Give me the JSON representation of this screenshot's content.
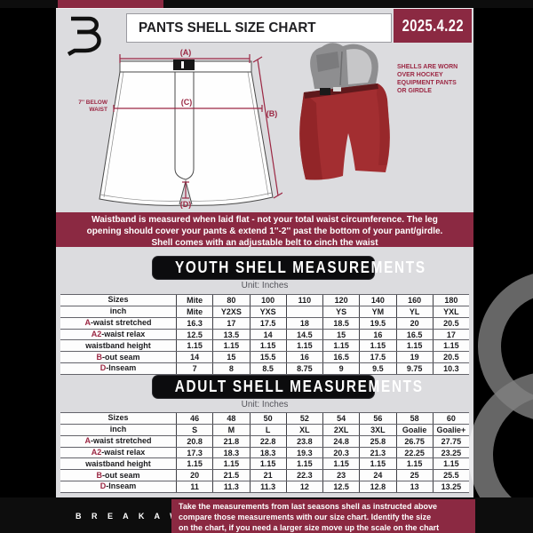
{
  "colors": {
    "maroon": "#8b2942",
    "accent_letter": "#9b2743",
    "page_bg": "#dcdcdf",
    "bar_black": "#0d0d0d"
  },
  "header": {
    "title": "PANTS SHELL SIZE CHART",
    "date": "2025.4.22"
  },
  "diagram": {
    "labels": {
      "a": "(A)",
      "b": "(B)",
      "c": "(C)",
      "d": "(D)"
    },
    "waist_note": [
      "7'' BELOW",
      "WAIST"
    ],
    "shell_note": [
      "SHELLS ARE WORN",
      "OVER HOCKEY",
      "EQUIPMENT PANTS",
      "OR GIRDLE"
    ]
  },
  "notice": {
    "lines": [
      "Waistband is measured when laid flat - not your total waist circumference. The leg",
      "opening should cover your pants & extend 1''-2'' past the bottom of your pant/girdle.",
      "Shell comes with an adjustable belt to cinch the waist"
    ]
  },
  "youth": {
    "heading": "YOUTH SHELL MEASUREMENTS",
    "unit": "Unit: Inches",
    "rows": [
      {
        "prefix": "",
        "label": "Sizes",
        "values": [
          "Mite",
          "80",
          "100",
          "110",
          "120",
          "140",
          "160",
          "180"
        ]
      },
      {
        "prefix": "",
        "label": "inch",
        "values": [
          "Mite",
          "Y2XS",
          "YXS",
          "",
          "YS",
          "YM",
          "YL",
          "YXL"
        ]
      },
      {
        "prefix": "A",
        "label": "-waist stretched",
        "values": [
          "16.3",
          "17",
          "17.5",
          "18",
          "18.5",
          "19.5",
          "20",
          "20.5"
        ]
      },
      {
        "prefix": "A2",
        "label": "-waist relax",
        "values": [
          "12.5",
          "13.5",
          "14",
          "14.5",
          "15",
          "16",
          "16.5",
          "17"
        ]
      },
      {
        "prefix": "",
        "label": "waistband height",
        "values": [
          "1.15",
          "1.15",
          "1.15",
          "1.15",
          "1.15",
          "1.15",
          "1.15",
          "1.15"
        ]
      },
      {
        "prefix": "B",
        "label": "-out seam",
        "values": [
          "14",
          "15",
          "15.5",
          "16",
          "16.5",
          "17.5",
          "19",
          "20.5"
        ]
      },
      {
        "prefix": "D",
        "label": "-Inseam",
        "values": [
          "7",
          "8",
          "8.5",
          "8.75",
          "9",
          "9.5",
          "9.75",
          "10.3"
        ]
      }
    ]
  },
  "adult": {
    "heading": "ADULT SHELL MEASUREMENTS",
    "unit": "Unit: Inches",
    "rows": [
      {
        "prefix": "",
        "label": "Sizes",
        "values": [
          "46",
          "48",
          "50",
          "52",
          "54",
          "56",
          "58",
          "60"
        ]
      },
      {
        "prefix": "",
        "label": "inch",
        "values": [
          "S",
          "M",
          "L",
          "XL",
          "2XL",
          "3XL",
          "Goalie",
          "Goalie+"
        ]
      },
      {
        "prefix": "A",
        "label": "-waist stretched",
        "values": [
          "20.8",
          "21.8",
          "22.8",
          "23.8",
          "24.8",
          "25.8",
          "26.75",
          "27.75"
        ]
      },
      {
        "prefix": "A2",
        "label": "-waist relax",
        "values": [
          "17.3",
          "18.3",
          "18.3",
          "19.3",
          "20.3",
          "21.3",
          "22.25",
          "23.25"
        ]
      },
      {
        "prefix": "",
        "label": "waistband height",
        "values": [
          "1.15",
          "1.15",
          "1.15",
          "1.15",
          "1.15",
          "1.15",
          "1.15",
          "1.15"
        ]
      },
      {
        "prefix": "B",
        "label": "-out seam",
        "values": [
          "20",
          "21.5",
          "21",
          "22.3",
          "23",
          "24",
          "25",
          "25.5"
        ]
      },
      {
        "prefix": "D",
        "label": "-Inseam",
        "values": [
          "11",
          "11.3",
          "11.3",
          "12",
          "12.5",
          "12.8",
          "13",
          "13.25"
        ]
      }
    ]
  },
  "footer": {
    "brand": "B R E A K A W A Y",
    "lines": [
      "Take the measurements from last seasons shell as instructed above",
      "compare those measurements  with our size chart. Identify the size",
      "on the chart, if you need a larger size move up the scale on the chart"
    ]
  }
}
